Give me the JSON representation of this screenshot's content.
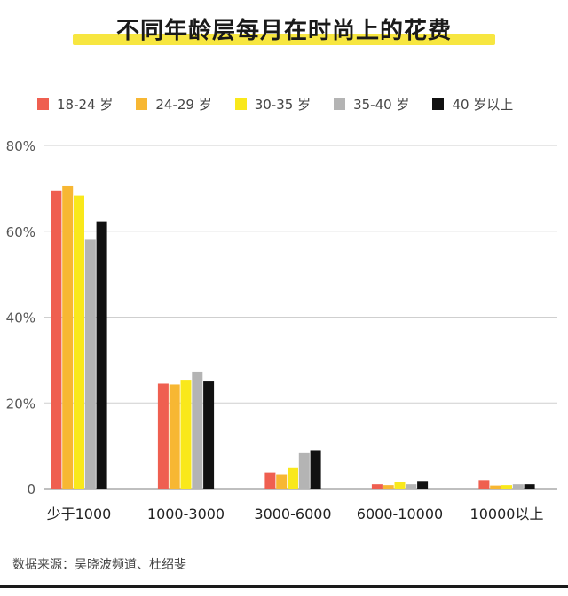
{
  "chart_data": {
    "type": "bar",
    "title": "不同年龄层每月在时尚上的花费",
    "categories": [
      "少于1000",
      "1000-3000",
      "3000-6000",
      "6000-10000",
      "10000以上"
    ],
    "series": [
      {
        "name": "18-24 岁",
        "color": "#ef5f50",
        "values": [
          69.5,
          24.5,
          3.8,
          1.0,
          2.0
        ]
      },
      {
        "name": "24-29 岁",
        "color": "#f7b733",
        "values": [
          70.5,
          24.3,
          3.2,
          0.8,
          0.7
        ]
      },
      {
        "name": "30-35 岁",
        "color": "#f9e81b",
        "values": [
          68.3,
          25.2,
          4.8,
          1.5,
          0.8
        ]
      },
      {
        "name": "35-40 岁",
        "color": "#b4b4b4",
        "values": [
          58.0,
          27.3,
          8.3,
          1.0,
          1.0
        ]
      },
      {
        "name": "40 岁以上",
        "color": "#111111",
        "values": [
          62.3,
          25.0,
          9.0,
          1.8,
          1.0
        ]
      }
    ],
    "ylim": [
      0,
      80
    ],
    "yticks": [
      0,
      20,
      40,
      60,
      80
    ],
    "ytick_labels": [
      "0",
      "20%",
      "40%",
      "60%",
      "80%"
    ],
    "grid": true,
    "legend_position": "top",
    "source": "数据来源：吴晓波频道、杜绍斐"
  }
}
